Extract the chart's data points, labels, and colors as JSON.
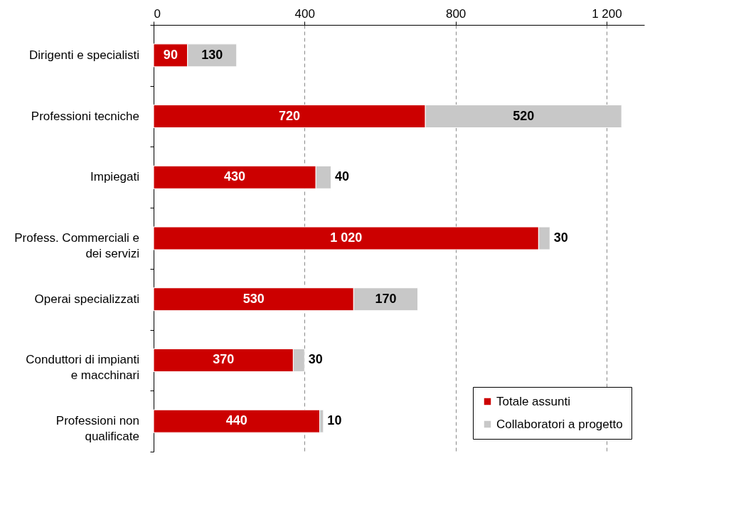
{
  "chart_data": {
    "type": "bar",
    "orientation": "horizontal",
    "stacked": true,
    "categories": [
      "Dirigenti e specialisti",
      "Professioni tecniche",
      "Impiegati",
      "Profess. Commerciali e dei servizi",
      "Operai specializzati",
      "Conduttori di impianti e macchinari",
      "Professioni non qualificate"
    ],
    "series": [
      {
        "name": "Totale assunti",
        "color": "#cc0000",
        "values": [
          90,
          720,
          430,
          1020,
          530,
          370,
          440
        ],
        "value_labels": [
          "90",
          "720",
          "430",
          "1 020",
          "530",
          "370",
          "440"
        ]
      },
      {
        "name": "Collaboratori a progetto",
        "color": "#c8c8c8",
        "values": [
          130,
          520,
          40,
          30,
          170,
          30,
          10
        ],
        "value_labels": [
          "130",
          "520",
          "40",
          "30",
          "170",
          "30",
          "10"
        ]
      }
    ],
    "xlim": [
      0,
      1300
    ],
    "xticks": [
      0,
      400,
      800,
      {
        "value": 1200,
        "label": "1 200"
      }
    ],
    "grid": "x",
    "legend": "bottom right"
  }
}
